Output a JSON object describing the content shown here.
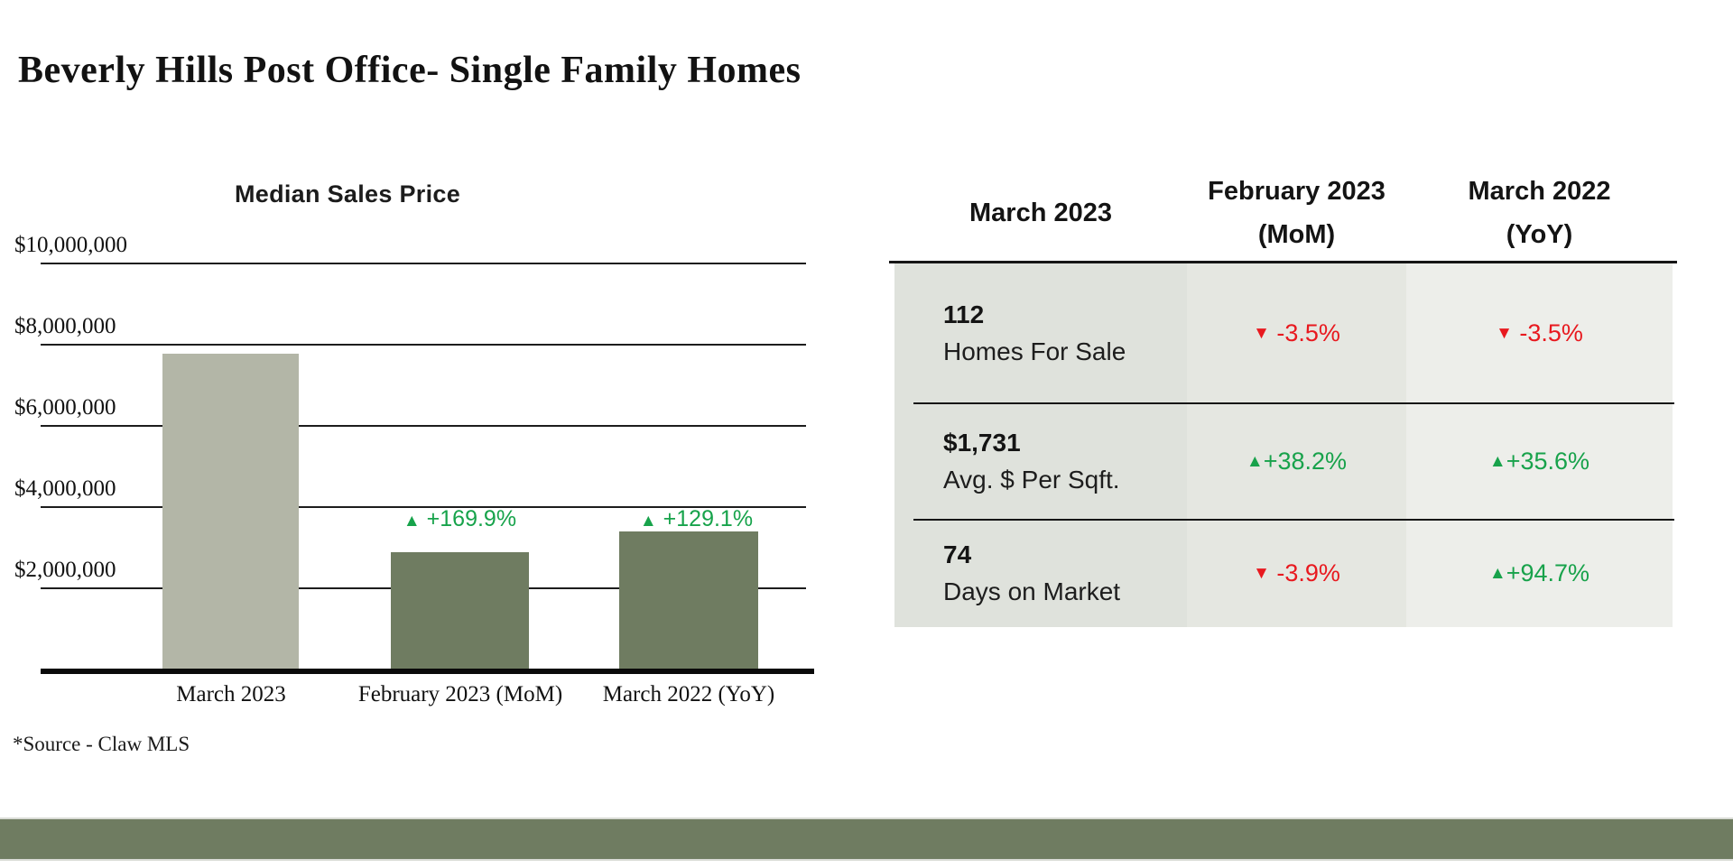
{
  "page": {
    "title": "Beverly Hills Post Office- Single Family Homes",
    "source_note": "*Source - Claw MLS"
  },
  "colors": {
    "bar_light_sage": "#b3b6a7",
    "bar_olive": "#6f7c61",
    "footer_band": "#6f7c61",
    "positive_green": "#18a24b",
    "negative_red": "#e8191f",
    "table_col1_bg": "#dfe2dc",
    "table_col2_bg": "#e5e7e1",
    "table_col3_bg": "#edeeea"
  },
  "chart_data": {
    "type": "bar",
    "title": "Median Sales Price",
    "categories": [
      "March 2023",
      "February 2023 (MoM)",
      "March 2022 (YoY)"
    ],
    "values": [
      7745000,
      2870000,
      3380000
    ],
    "bar_colors": [
      "#b3b6a7",
      "#6f7c61",
      "#6f7c61"
    ],
    "annotations": [
      {
        "arrow": "",
        "text": ""
      },
      {
        "arrow": "▲",
        "text": " +169.9%"
      },
      {
        "arrow": "▲",
        "text": " +129.1%"
      }
    ],
    "xlabel": "",
    "ylabel": "",
    "ylim": [
      0,
      10000000
    ],
    "grid": true,
    "legend": false,
    "ytick_labels": {
      "t10": "$10,000,000",
      "t8": "$8,000,000",
      "t6": "$6,000,000",
      "t4": "$4,000,000",
      "t2": "$2,000,000"
    }
  },
  "table": {
    "headers": {
      "col1_line1": "March 2023",
      "col2_line1": "February 2023",
      "col2_line2": "(MoM)",
      "col3_line1": "March 2022",
      "col3_line2": "(YoY)"
    },
    "rows": [
      {
        "value": "112",
        "label": "Homes For Sale",
        "mom": {
          "arrow": "▼",
          "text": " -3.5%",
          "dir": "down"
        },
        "yoy": {
          "arrow": "▼",
          "text": " -3.5%",
          "dir": "down"
        }
      },
      {
        "value": "$1,731",
        "label": "Avg. $ Per Sqft.",
        "mom": {
          "arrow": "▲",
          "text": "+38.2%",
          "dir": "up"
        },
        "yoy": {
          "arrow": "▲",
          "text": "+35.6%",
          "dir": "up"
        }
      },
      {
        "value": "74",
        "label": "Days on Market",
        "mom": {
          "arrow": "▼",
          "text": " -3.9%",
          "dir": "down"
        },
        "yoy": {
          "arrow": "▲",
          "text": "+94.7%",
          "dir": "up"
        }
      }
    ]
  }
}
